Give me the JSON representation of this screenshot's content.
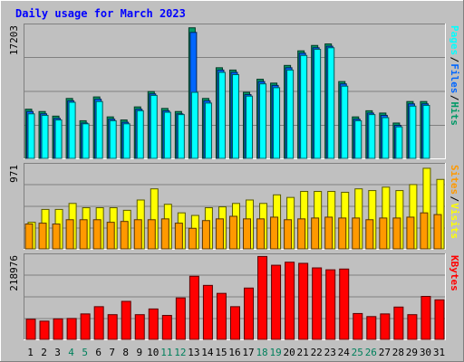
{
  "chart_data": [
    {
      "type": "bar",
      "title": "Daily usage for March 2023",
      "panel": "top",
      "y_tick_label": "17203",
      "ylim": [
        0,
        17203
      ],
      "right_axis_labels": [
        "Pages",
        "Files",
        "Hits"
      ],
      "categories": [
        "1",
        "2",
        "3",
        "4",
        "5",
        "6",
        "7",
        "8",
        "9",
        "10",
        "11",
        "12",
        "13",
        "14",
        "15",
        "16",
        "17",
        "18",
        "19",
        "20",
        "21",
        "22",
        "23",
        "24",
        "25",
        "26",
        "27",
        "28",
        "29",
        "30",
        "31"
      ],
      "series": [
        {
          "name": "Hits",
          "values": [
            6400,
            6100,
            5500,
            7800,
            4900,
            8000,
            5400,
            5000,
            6700,
            8700,
            6500,
            6100,
            17000,
            7800,
            11800,
            11500,
            8600,
            10300,
            9800,
            12100,
            14000,
            14700,
            14900,
            10000,
            5400,
            6200,
            5900,
            4600,
            7400,
            7400,
            0
          ]
        },
        {
          "name": "Files",
          "values": [
            6100,
            5800,
            5200,
            7500,
            4600,
            7700,
            5100,
            4700,
            6400,
            8400,
            6200,
            5800,
            16400,
            7500,
            11500,
            11200,
            8300,
            10000,
            9500,
            11800,
            13700,
            14400,
            14600,
            9700,
            5100,
            5900,
            5600,
            4300,
            7100,
            7100,
            0
          ]
        },
        {
          "name": "Pages",
          "values": [
            5800,
            5600,
            5000,
            7300,
            4500,
            7400,
            4900,
            4500,
            6200,
            8200,
            6000,
            5700,
            8600,
            7200,
            11200,
            10900,
            8100,
            9700,
            9200,
            11500,
            13400,
            14200,
            14400,
            9400,
            4900,
            5700,
            5300,
            4100,
            6800,
            6900,
            0
          ]
        }
      ],
      "colors": {
        "Hits": "#009966",
        "Files": "#0066ff",
        "Pages": "#00ffff"
      }
    },
    {
      "type": "bar",
      "panel": "middle",
      "y_tick_label": "971",
      "ylim": [
        0,
        971
      ],
      "right_axis_labels": [
        "Sites",
        "Visits"
      ],
      "categories": [
        "1",
        "2",
        "3",
        "4",
        "5",
        "6",
        "7",
        "8",
        "9",
        "10",
        "11",
        "12",
        "13",
        "14",
        "15",
        "16",
        "17",
        "18",
        "19",
        "20",
        "21",
        "22",
        "23",
        "24",
        "25",
        "26",
        "27",
        "28",
        "29",
        "30",
        "31"
      ],
      "series": [
        {
          "name": "Visits",
          "values": [
            310,
            460,
            460,
            530,
            480,
            480,
            480,
            450,
            570,
            700,
            520,
            420,
            390,
            480,
            490,
            530,
            570,
            530,
            630,
            600,
            670,
            670,
            670,
            660,
            700,
            680,
            720,
            680,
            750,
            940,
            810
          ]
        },
        {
          "name": "Sites",
          "values": [
            290,
            300,
            290,
            340,
            340,
            340,
            310,
            320,
            340,
            340,
            350,
            300,
            240,
            330,
            350,
            380,
            350,
            350,
            370,
            340,
            350,
            360,
            370,
            360,
            360,
            340,
            360,
            360,
            370,
            420,
            400
          ]
        }
      ],
      "colors": {
        "Visits": "#ffff00",
        "Sites": "#ff9900"
      }
    },
    {
      "type": "bar",
      "panel": "bottom",
      "y_tick_label": "218976",
      "ylim": [
        0,
        218976
      ],
      "right_axis_labels": [
        "KBytes"
      ],
      "categories": [
        "1",
        "2",
        "3",
        "4",
        "5",
        "6",
        "7",
        "8",
        "9",
        "10",
        "11",
        "12",
        "13",
        "14",
        "15",
        "16",
        "17",
        "18",
        "19",
        "20",
        "21",
        "22",
        "23",
        "24",
        "25",
        "26",
        "27",
        "28",
        "29",
        "30",
        "31"
      ],
      "series": [
        {
          "name": "KBytes",
          "values": [
            53000,
            48000,
            54000,
            55000,
            67000,
            86000,
            65000,
            100000,
            65000,
            80000,
            63000,
            109000,
            166000,
            142000,
            121000,
            86000,
            135000,
            218000,
            195000,
            203000,
            200000,
            188000,
            183000,
            185000,
            68000,
            60000,
            67000,
            85000,
            65000,
            113000,
            104000
          ]
        }
      ],
      "colors": {
        "KBytes": "#ff0000"
      }
    }
  ],
  "x_day_labels": [
    "1",
    "2",
    "3",
    "4",
    "5",
    "6",
    "7",
    "8",
    "9",
    "10",
    "11",
    "12",
    "13",
    "14",
    "15",
    "16",
    "17",
    "18",
    "19",
    "20",
    "21",
    "22",
    "23",
    "24",
    "25",
    "26",
    "27",
    "28",
    "29",
    "30",
    "31"
  ],
  "weekend_days": [
    4,
    5,
    11,
    12,
    18,
    19,
    25,
    26
  ],
  "colors": {
    "weekday_label": "#000000",
    "weekend_label": "#00805c",
    "title": "#0000ff",
    "plot_bg": "#c0c0c0",
    "frame_bg": "#c0c0c0"
  }
}
